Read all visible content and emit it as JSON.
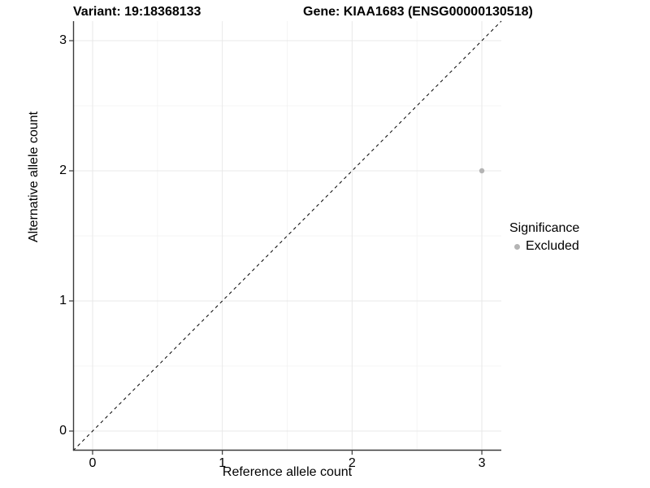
{
  "chart_data": {
    "type": "scatter",
    "titles": {
      "left": "Variant: 19:18368133",
      "right": "Gene: KIAA1683 (ENSG00000130518)"
    },
    "xlabel": "Reference allele count",
    "ylabel": "Alternative allele count",
    "xlim": [
      -0.15,
      3.15
    ],
    "ylim": [
      -0.15,
      3.15
    ],
    "x_ticks": [
      0,
      1,
      2,
      3
    ],
    "y_ticks": [
      0,
      1,
      2,
      3
    ],
    "x_minor_ticks": [
      0.5,
      1.5,
      2.5
    ],
    "y_minor_ticks": [
      0.5,
      1.5,
      2.5
    ],
    "grid": true,
    "series": [
      {
        "name": "Excluded",
        "color": "#b4b4b4",
        "marker": "circle",
        "points": [
          {
            "x": 3,
            "y": 2
          }
        ]
      }
    ],
    "reference_line": {
      "kind": "identity",
      "slope": 1,
      "intercept": 0,
      "style": "dashed",
      "color": "#000000"
    },
    "legend": {
      "title": "Significance",
      "position": "right",
      "entries": [
        {
          "label": "Excluded",
          "color": "#b4b4b4",
          "marker": "circle"
        }
      ]
    },
    "colors": {
      "grid_major": "#e8e8e8",
      "grid_minor": "#f2f2f2",
      "axis_line": "#3a3a3a",
      "text": "#000000",
      "panel_background": "#ffffff"
    }
  }
}
